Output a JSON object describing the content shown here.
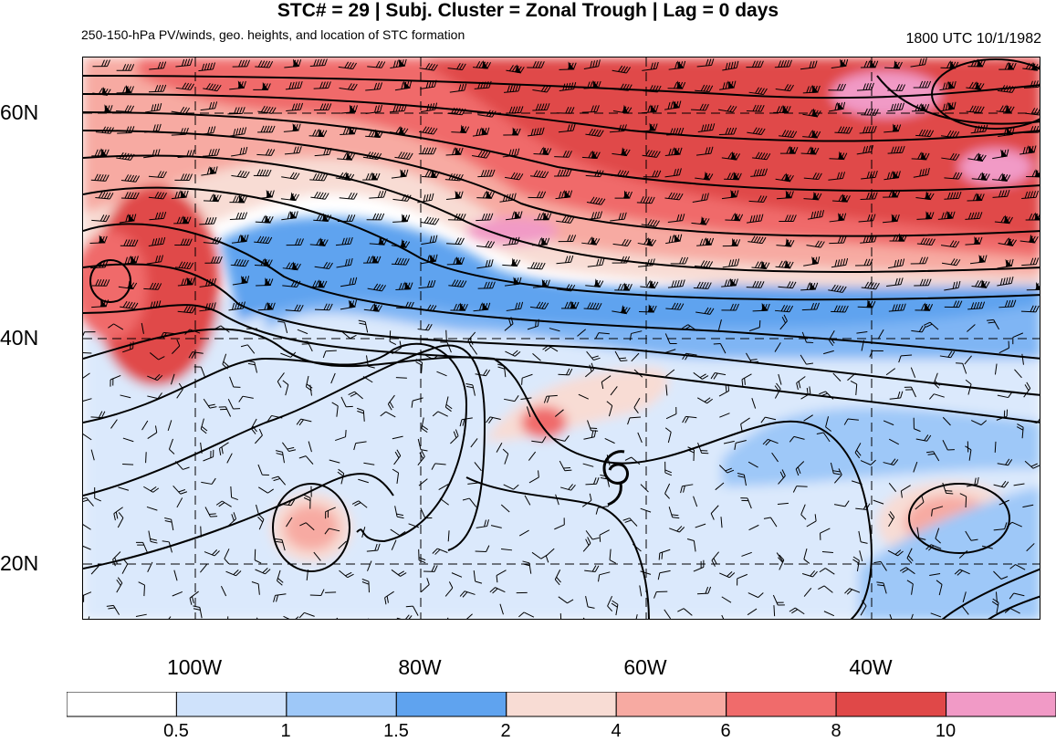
{
  "title": "STC# = 29 | Subj. Cluster = Zonal Trough | Lag = 0 days",
  "subtitle": "250-150-hPa PV/winds, geo. heights, and location of STC formation",
  "timestamp": "1800 UTC  10/1/1982",
  "map": {
    "lat_labels": [
      "60N",
      "40N",
      "20N"
    ],
    "lon_labels": [
      "100W",
      "80W",
      "60W",
      "40W"
    ],
    "storm_symbol": "tropical-cyclone-formation-icon"
  },
  "colorbar": {
    "labels": [
      "0.5",
      "1",
      "1.5",
      "2",
      "4",
      "6",
      "8",
      "10"
    ],
    "colors": [
      "#ffffff",
      "#cfe2fb",
      "#9ec8f8",
      "#5fa3ef",
      "#f8dcd4",
      "#f7aaa2",
      "#f06b6b",
      "#e04848",
      "#f19ac6"
    ]
  }
}
